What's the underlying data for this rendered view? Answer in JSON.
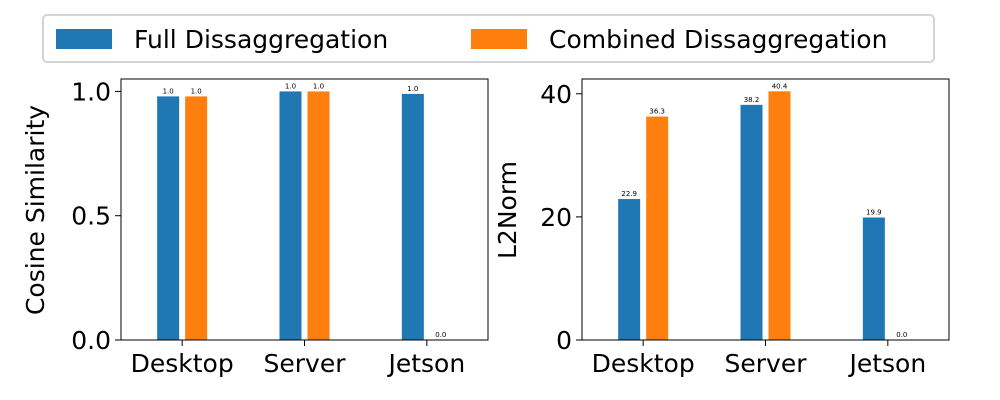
{
  "legend": {
    "items": [
      {
        "label": "Full Dissaggregation",
        "color": "#1f77b4"
      },
      {
        "label": "Combined Dissaggregation",
        "color": "#ff7f0e"
      }
    ]
  },
  "chart_data": [
    {
      "type": "bar",
      "categories": [
        "Desktop",
        "Server",
        "Jetson"
      ],
      "series": [
        {
          "name": "Full Dissaggregation",
          "values": [
            0.98,
            1.0,
            0.99
          ],
          "labels": [
            "1.0",
            "1.0",
            "1.0"
          ],
          "color": "#1f77b4"
        },
        {
          "name": "Combined Dissaggregation",
          "values": [
            0.98,
            1.0,
            0.0
          ],
          "labels": [
            "1.0",
            "1.0",
            "0.0"
          ],
          "color": "#ff7f0e"
        }
      ],
      "ylabel": "Cosine Similarity",
      "ylim": [
        0,
        1.05
      ],
      "yticks": [
        "0.0",
        "0.5",
        "1.0"
      ],
      "ytick_values": [
        0,
        0.5,
        1.0
      ]
    },
    {
      "type": "bar",
      "categories": [
        "Desktop",
        "Server",
        "Jetson"
      ],
      "series": [
        {
          "name": "Full Dissaggregation",
          "values": [
            22.9,
            38.2,
            19.9
          ],
          "labels": [
            "22.9",
            "38.2",
            "19.9"
          ],
          "color": "#1f77b4"
        },
        {
          "name": "Combined Dissaggregation",
          "values": [
            36.3,
            40.4,
            0.0
          ],
          "labels": [
            "36.3",
            "40.4",
            "0.0"
          ],
          "color": "#ff7f0e"
        }
      ],
      "ylabel": "L2Norm",
      "ylim": [
        0,
        42.4
      ],
      "yticks": [
        "0",
        "20",
        "40"
      ],
      "ytick_values": [
        0,
        20,
        40
      ]
    }
  ]
}
